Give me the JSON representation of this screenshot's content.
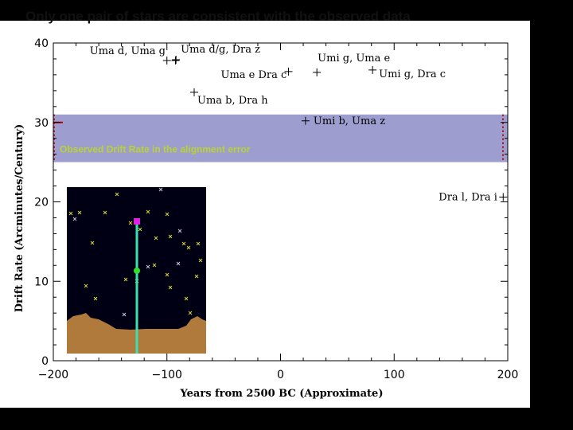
{
  "slide": {
    "title": "Only one pair of stars are consistent with the observed data"
  },
  "chart_data": {
    "type": "scatter",
    "xlabel": "Years from 2500 BC (Approximate)",
    "ylabel": "Drift Rate (Arcminutes/Century)",
    "xlim": [
      -200,
      200
    ],
    "ylim": [
      0,
      40
    ],
    "x_ticks": [
      "−200",
      "−100",
      "0",
      "100",
      "200"
    ],
    "y_ticks": [
      "0",
      "10",
      "20",
      "30",
      "40"
    ],
    "grid": false,
    "band": {
      "y_range": [
        25,
        31
      ],
      "label": "Observed Drift Rate in the alignment error",
      "color": "#9d9ecf",
      "label_color": "#b8d430"
    },
    "points": [
      {
        "label": "Uma d, Uma g",
        "x": -100,
        "y": 37.8
      },
      {
        "label": "Uma d/g, Dra z",
        "x": -92,
        "y": 37.9
      },
      {
        "label": "Uma e Dra c",
        "x": 7,
        "y": 36.4
      },
      {
        "label": "Umi g, Uma e",
        "x": 32,
        "y": 36.3
      },
      {
        "label": "Umi g, Dra c",
        "x": 81,
        "y": 36.6
      },
      {
        "label": "Uma b, Dra h",
        "x": -76,
        "y": 33.8
      },
      {
        "label": "Umi b, Uma z",
        "x": 22,
        "y": 30.2
      },
      {
        "label": "Dra l, Dra i",
        "x": 196,
        "y": 20.6
      }
    ],
    "inset": {
      "bg": "#000014",
      "ground": "#b07a3c",
      "pole_color": "#3ee0b0",
      "marker_top": "#e020e0",
      "marker_mid": "#30e030",
      "star_color": "#d8d040",
      "star_color_white": "#c8c8d8"
    }
  }
}
